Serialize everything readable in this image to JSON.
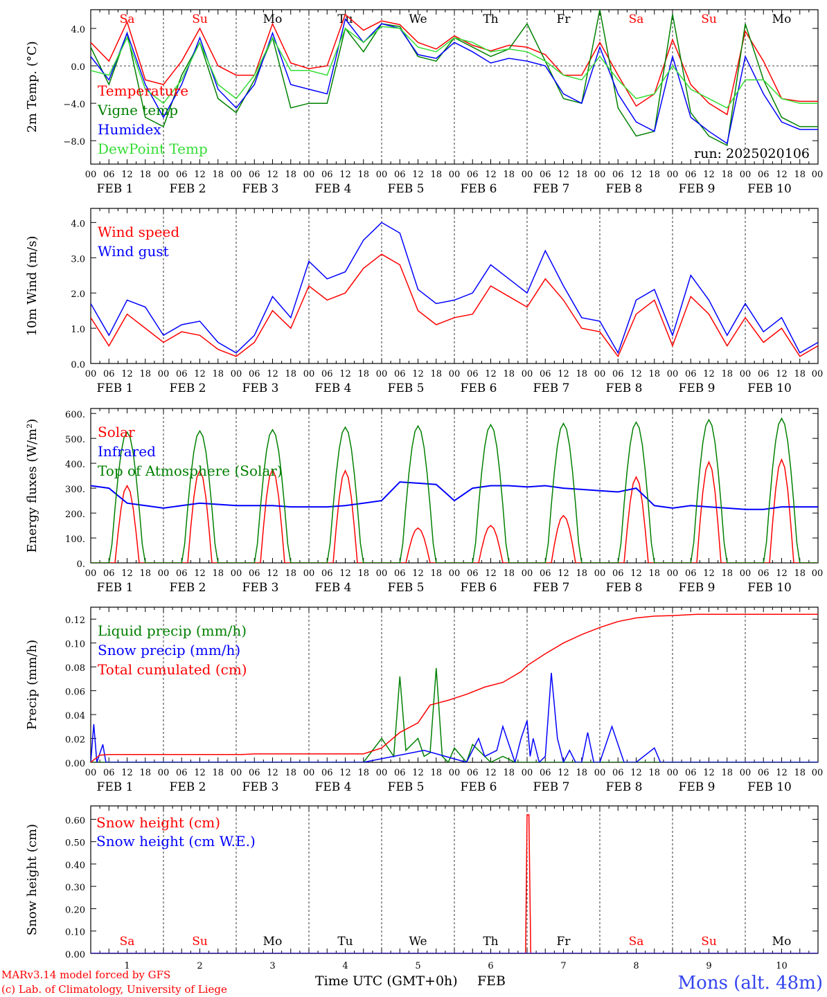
{
  "colors": {
    "red": "#ff0000",
    "green": "#008000",
    "blue": "#0000ff",
    "lightgreen": "#33dd33",
    "black": "#000000"
  },
  "days": [
    "Sa",
    "Su",
    "Mo",
    "Tu",
    "We",
    "Th",
    "Fr",
    "Sa",
    "Su",
    "Mo"
  ],
  "day_colors": [
    "#ff0000",
    "#ff0000",
    "#000000",
    "#000000",
    "#000000",
    "#000000",
    "#000000",
    "#ff0000",
    "#ff0000",
    "#000000"
  ],
  "hour_labels": [
    "00",
    "06",
    "12",
    "18"
  ],
  "date_labels": [
    "FEB  1",
    "FEB  2",
    "FEB  3",
    "FEB  4",
    "FEB  5",
    "FEB  6",
    "FEB  7",
    "FEB  8",
    "FEB  9",
    "FEB 10"
  ],
  "bottom_day_numbers": [
    "1",
    "2",
    "3",
    "4",
    "5",
    "6",
    "7",
    "8",
    "9",
    "10"
  ],
  "footer": {
    "model": "MARv3.14 model forced by GFS",
    "credit": "(c) Lab. of Climatology, University of Liege",
    "xlabel": "Time UTC (GMT+0h)",
    "month": "FEB",
    "location": "Mons (alt. 48m)"
  },
  "chart_data": [
    {
      "type": "line",
      "ylabel": "2m Temp. (°C)",
      "ylim": [
        -10.5,
        6
      ],
      "yticks": [
        4.0,
        0.0,
        -4.0,
        -8.0
      ],
      "ytick_labels": [
        "4.0",
        "0.0",
        "−4.0",
        "−8.0"
      ],
      "zero_line": true,
      "annotation": "run: 2025020106",
      "x_unit": "hours since Feb 1 00 UTC",
      "series": [
        {
          "name": "Temperature",
          "color": "#ff0000",
          "x": [
            0,
            6,
            12,
            18,
            24,
            30,
            36,
            42,
            48,
            54,
            60,
            66,
            72,
            78,
            84,
            90,
            96,
            102,
            108,
            114,
            120,
            126,
            132,
            138,
            144,
            150,
            156,
            162,
            168,
            174,
            180,
            186,
            192,
            198,
            204,
            210,
            216,
            222,
            228,
            234,
            240
          ],
          "y": [
            2.5,
            0.5,
            4.7,
            -1.5,
            -2.0,
            0.5,
            4.0,
            0.0,
            -1.0,
            -1.0,
            4.5,
            0.3,
            -0.3,
            0.0,
            5.5,
            3.8,
            4.8,
            4.4,
            2.5,
            1.8,
            3.2,
            2.2,
            1.6,
            2.2,
            2.0,
            1.2,
            -1.0,
            -1.0,
            2.5,
            -1.0,
            -4.3,
            -3.0,
            2.8,
            -2.0,
            -4.0,
            -5.2,
            3.7,
            0.5,
            -3.5,
            -3.8,
            -3.8
          ]
        },
        {
          "name": "Vigne temp",
          "color": "#008000",
          "x": [
            0,
            6,
            12,
            18,
            24,
            30,
            36,
            42,
            48,
            54,
            60,
            66,
            72,
            78,
            84,
            90,
            96,
            102,
            108,
            114,
            120,
            126,
            132,
            138,
            144,
            150,
            156,
            162,
            168,
            174,
            180,
            186,
            192,
            198,
            204,
            210,
            216,
            222,
            228,
            234,
            240
          ],
          "y": [
            2.0,
            -2.0,
            3.5,
            -5.5,
            -6.5,
            -1.0,
            2.5,
            -3.5,
            -5.0,
            -1.5,
            3.0,
            -4.5,
            -4.0,
            -4.0,
            4.0,
            1.5,
            4.5,
            4.2,
            1.0,
            0.5,
            3.0,
            2.0,
            1.0,
            1.8,
            4.5,
            0.5,
            -3.5,
            -4.0,
            6.0,
            -4.5,
            -7.5,
            -7.0,
            5.5,
            -5.0,
            -7.5,
            -8.5,
            4.5,
            -1.5,
            -5.5,
            -6.5,
            -6.5
          ]
        },
        {
          "name": "Humidex",
          "color": "#0000ff",
          "x": [
            0,
            6,
            12,
            18,
            24,
            30,
            36,
            42,
            48,
            54,
            60,
            66,
            72,
            78,
            84,
            90,
            96,
            102,
            108,
            114,
            120,
            126,
            132,
            138,
            144,
            150,
            156,
            162,
            168,
            174,
            180,
            186,
            192,
            198,
            204,
            210,
            216,
            222,
            228,
            234,
            240
          ],
          "y": [
            1.0,
            -1.5,
            3.5,
            -2.0,
            -5.5,
            -2.0,
            3.0,
            -2.5,
            -4.5,
            -2.0,
            3.5,
            -2.0,
            -2.5,
            -3.0,
            5.0,
            2.5,
            4.5,
            4.0,
            1.2,
            0.8,
            2.5,
            1.5,
            0.3,
            0.8,
            0.5,
            0.0,
            -3.0,
            -4.0,
            2.0,
            -3.0,
            -6.0,
            -7.0,
            1.0,
            -5.5,
            -7.0,
            -8.3,
            1.0,
            -3.0,
            -6.0,
            -6.8,
            -6.8
          ]
        },
        {
          "name": "DewPoint Temp",
          "color": "#33dd33",
          "x": [
            0,
            6,
            12,
            18,
            24,
            30,
            36,
            42,
            48,
            54,
            60,
            66,
            72,
            78,
            84,
            90,
            96,
            102,
            108,
            114,
            120,
            126,
            132,
            138,
            144,
            150,
            156,
            162,
            168,
            174,
            180,
            186,
            192,
            198,
            204,
            210,
            216,
            222,
            228,
            234,
            240
          ],
          "y": [
            -0.5,
            -1.0,
            3.0,
            -2.5,
            -4.0,
            -1.5,
            2.5,
            -2.0,
            -3.5,
            -1.0,
            3.0,
            -0.5,
            -0.5,
            -1.0,
            4.0,
            2.5,
            4.2,
            4.0,
            2.0,
            1.5,
            3.0,
            2.5,
            1.5,
            1.8,
            1.5,
            0.5,
            -1.0,
            -1.5,
            1.0,
            -1.5,
            -3.5,
            -3.0,
            0.0,
            -2.5,
            -3.5,
            -4.5,
            -1.5,
            -1.5,
            -3.5,
            -4.0,
            -4.0
          ]
        }
      ]
    },
    {
      "type": "line",
      "ylabel": "10m Wind (m/s)",
      "ylim": [
        0,
        4.4
      ],
      "yticks": [
        0,
        1,
        2,
        3,
        4
      ],
      "ytick_labels": [
        "0.0",
        "1.0",
        "2.0",
        "3.0",
        "4.0"
      ],
      "x_unit": "hours since Feb 1 00 UTC",
      "series": [
        {
          "name": "Wind speed",
          "color": "#ff0000",
          "x": [
            0,
            6,
            12,
            18,
            24,
            30,
            36,
            42,
            48,
            54,
            60,
            66,
            72,
            78,
            84,
            90,
            96,
            102,
            108,
            114,
            120,
            126,
            132,
            138,
            144,
            150,
            156,
            162,
            168,
            174,
            180,
            186,
            192,
            198,
            204,
            210,
            216,
            222,
            228,
            234,
            240
          ],
          "y": [
            1.3,
            0.5,
            1.4,
            1.0,
            0.6,
            0.9,
            0.8,
            0.4,
            0.2,
            0.6,
            1.5,
            1.0,
            2.2,
            1.8,
            2.0,
            2.7,
            3.1,
            2.8,
            1.5,
            1.1,
            1.3,
            1.4,
            2.2,
            1.9,
            1.6,
            2.4,
            1.8,
            1.0,
            0.9,
            0.2,
            1.4,
            1.8,
            0.5,
            1.9,
            1.4,
            0.5,
            1.3,
            0.6,
            1.0,
            0.2,
            0.5
          ]
        },
        {
          "name": "Wind gust",
          "color": "#0000ff",
          "x": [
            0,
            6,
            12,
            18,
            24,
            30,
            36,
            42,
            48,
            54,
            60,
            66,
            72,
            78,
            84,
            90,
            96,
            102,
            108,
            114,
            120,
            126,
            132,
            138,
            144,
            150,
            156,
            162,
            168,
            174,
            180,
            186,
            192,
            198,
            204,
            210,
            216,
            222,
            228,
            234,
            240
          ],
          "y": [
            1.7,
            0.8,
            1.8,
            1.6,
            0.8,
            1.1,
            1.2,
            0.6,
            0.3,
            0.8,
            1.9,
            1.3,
            2.9,
            2.4,
            2.6,
            3.5,
            4.0,
            3.7,
            2.1,
            1.7,
            1.8,
            2.0,
            2.8,
            2.4,
            2.0,
            3.2,
            2.2,
            1.3,
            1.2,
            0.3,
            1.8,
            2.1,
            0.8,
            2.5,
            1.8,
            0.8,
            1.7,
            0.9,
            1.3,
            0.3,
            0.6
          ]
        }
      ]
    },
    {
      "type": "line",
      "ylabel": "Energy fluxes (W/m²)",
      "ylim": [
        0,
        620
      ],
      "yticks": [
        0,
        100,
        200,
        300,
        400,
        500,
        600
      ],
      "ytick_labels": [
        "0.",
        "100.",
        "200.",
        "300.",
        "400.",
        "500.",
        "600."
      ],
      "x_unit": "hours since Feb 1 00 UTC",
      "series": [
        {
          "name": "Solar",
          "color": "#ff0000",
          "daily_peaks": [
            310,
            370,
            375,
            370,
            140,
            150,
            190,
            345,
            405,
            415
          ]
        },
        {
          "name": "Infrared",
          "color": "#0000ff",
          "x": [
            0,
            6,
            12,
            18,
            24,
            30,
            36,
            42,
            48,
            54,
            60,
            66,
            72,
            78,
            84,
            90,
            96,
            102,
            108,
            114,
            120,
            126,
            132,
            138,
            144,
            150,
            156,
            162,
            168,
            174,
            180,
            186,
            192,
            198,
            204,
            210,
            216,
            222,
            228,
            234,
            240
          ],
          "y": [
            310,
            300,
            240,
            230,
            220,
            230,
            240,
            235,
            230,
            230,
            230,
            225,
            225,
            225,
            230,
            240,
            250,
            325,
            320,
            315,
            250,
            300,
            310,
            310,
            305,
            310,
            300,
            295,
            290,
            285,
            300,
            230,
            220,
            230,
            225,
            220,
            215,
            215,
            225,
            225,
            225
          ]
        },
        {
          "name": "Top of Atmosphere (Solar)",
          "color": "#008000",
          "daily_peaks": [
            525,
            530,
            535,
            545,
            550,
            555,
            560,
            565,
            575,
            580
          ]
        }
      ]
    },
    {
      "type": "line",
      "ylabel": "Precip (mm/h)",
      "ylim": [
        0,
        0.13
      ],
      "yticks": [
        0,
        0.02,
        0.04,
        0.06,
        0.08,
        0.1,
        0.12
      ],
      "ytick_labels": [
        "0.00",
        "0.02",
        "0.04",
        "0.06",
        "0.08",
        "0.10",
        "0.12"
      ],
      "x_unit": "hours since Feb 1 00 UTC",
      "series": [
        {
          "name": "Liquid precip (mm/h)",
          "color": "#008000",
          "x": [
            0,
            90,
            96,
            100,
            102,
            104,
            108,
            110,
            112,
            114,
            116,
            118,
            120,
            124,
            126,
            130,
            132,
            136,
            140,
            144,
            240
          ],
          "y": [
            0,
            0,
            0.02,
            0.005,
            0.072,
            0.01,
            0.02,
            0.005,
            0.008,
            0.079,
            0.005,
            0.0,
            0.012,
            0.0,
            0.015,
            0.005,
            0.0,
            0.005,
            0.0,
            0.0,
            0
          ]
        },
        {
          "name": "Snow precip (mm/h)",
          "color": "#0000ff",
          "x": [
            0,
            1,
            2,
            4,
            5,
            6,
            8,
            10,
            60,
            90,
            110,
            124,
            128,
            130,
            134,
            136,
            140,
            142,
            144,
            145,
            146,
            148,
            150,
            152,
            154,
            156,
            158,
            160,
            162,
            164,
            166,
            168,
            172,
            176,
            180,
            186,
            188,
            190,
            200,
            240
          ],
          "y": [
            0,
            0.032,
            0,
            0.015,
            0,
            0,
            0,
            0,
            0,
            0,
            0.01,
            0.0,
            0.02,
            0.005,
            0.01,
            0.03,
            0.0,
            0.02,
            0.035,
            0.005,
            0.02,
            0.0,
            0.005,
            0.075,
            0.02,
            0.0,
            0.01,
            0.0,
            0.0,
            0.025,
            0.0,
            0.0,
            0.03,
            0.0,
            0.0,
            0.012,
            0.0,
            0,
            0,
            0
          ]
        },
        {
          "name": "Total cumulated (cm)",
          "color": "#ff0000",
          "x": [
            0,
            3,
            6,
            50,
            54,
            90,
            96,
            102,
            108,
            112,
            118,
            124,
            130,
            136,
            142,
            144,
            150,
            156,
            162,
            168,
            174,
            180,
            186,
            192,
            200,
            240
          ],
          "y": [
            0,
            0.006,
            0.0065,
            0.0065,
            0.007,
            0.007,
            0.012,
            0.025,
            0.033,
            0.048,
            0.052,
            0.057,
            0.063,
            0.067,
            0.076,
            0.081,
            0.091,
            0.1,
            0.107,
            0.113,
            0.118,
            0.121,
            0.1225,
            0.123,
            0.124,
            0.124
          ]
        }
      ]
    },
    {
      "type": "line",
      "ylabel": "Snow height (cm)",
      "ylim": [
        0,
        0.66
      ],
      "yticks": [
        0,
        0.1,
        0.2,
        0.3,
        0.4,
        0.5,
        0.6
      ],
      "ytick_labels": [
        "0.00",
        "0.10",
        "0.20",
        "0.30",
        "0.40",
        "0.50",
        "0.60"
      ],
      "x_unit": "hours since Feb 1 00 UTC",
      "series": [
        {
          "name": "Snow height (cm)",
          "color": "#ff0000",
          "x": [
            0,
            143.5,
            144,
            144.6,
            145.2,
            240
          ],
          "y": [
            0,
            0,
            0.62,
            0.62,
            0,
            0
          ]
        },
        {
          "name": "Snow height (cm W.E.)",
          "color": "#0000ff",
          "x": [
            0,
            240
          ],
          "y": [
            0,
            0
          ]
        }
      ]
    }
  ]
}
